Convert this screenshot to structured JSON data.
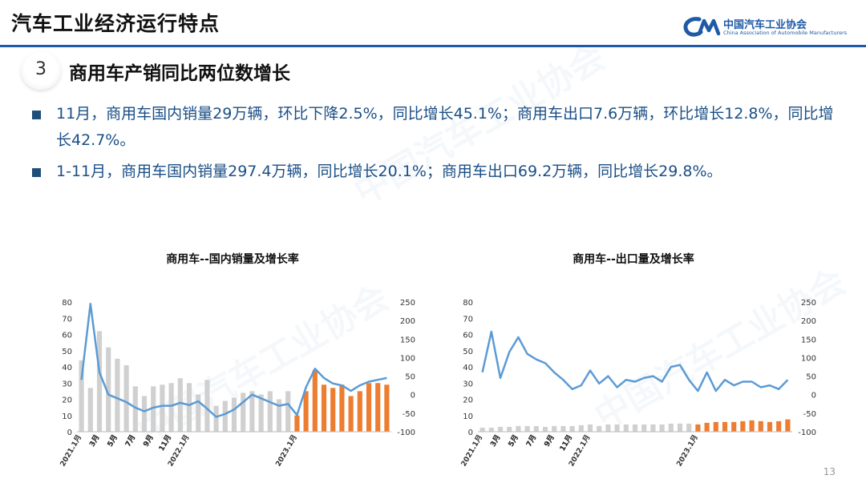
{
  "header": {
    "title": "汽车工业经济运行特点"
  },
  "logo": {
    "name_cn": "中国汽车工业协会",
    "name_en": "China Association of Automobile Manufacturers"
  },
  "section": {
    "number": "3",
    "title": "商用车产销同比两位数增长"
  },
  "bullets": [
    "11月，商用车国内销量29万辆，环比下降2.5%，同比增长45.1%；商用车出口7.6万辆，环比增长12.8%，同比增长42.7%。",
    "1-11月，商用车国内销量297.4万辆，同比增长20.1%；商用车出口69.2万辆，同比增长29.8%。"
  ],
  "page_number": "13",
  "colors": {
    "bar_prior": "#d0d0d0",
    "bar_2023": "#ed7d31",
    "line": "#5b9bd5",
    "brand": "#1f5aa6"
  },
  "chart_data": [
    {
      "type": "bar",
      "title": "商用车--国内销量及增长率",
      "categories": [
        "2021.1月",
        "2",
        "3月",
        "4",
        "5月",
        "6",
        "7月",
        "8",
        "9月",
        "10",
        "11月",
        "12",
        "2022.1月",
        "2",
        "3月",
        "4",
        "5月",
        "6",
        "7月",
        "8",
        "9月",
        "10",
        "11月",
        "12",
        "2023.1月",
        "2",
        "3月",
        "4",
        "5月",
        "6",
        "7月",
        "8",
        "9月",
        "10",
        "11月"
      ],
      "x_tick_labels": [
        "2021.1月",
        "3月",
        "5月",
        "7月",
        "9月",
        "11月",
        "2022.1月",
        "3月",
        "5月",
        "7月",
        "9月",
        "11月",
        "2023.1月",
        "3月",
        "5月",
        "7月",
        "9月",
        "11月"
      ],
      "series": [
        {
          "axis": "left",
          "render": "bar",
          "values": [
            44,
            27,
            62,
            52,
            45,
            41,
            28,
            22,
            28,
            29,
            30,
            33,
            30,
            23,
            32,
            16,
            19,
            21,
            24,
            25,
            23,
            25,
            20,
            25,
            10,
            25,
            38,
            29,
            27,
            29,
            22,
            25,
            30,
            30,
            29
          ]
        },
        {
          "axis": "right",
          "render": "line",
          "values": [
            40,
            245,
            60,
            0,
            -10,
            -20,
            -35,
            -45,
            -35,
            -30,
            -30,
            -22,
            -28,
            -18,
            -38,
            -60,
            -52,
            -40,
            -20,
            0,
            -10,
            -20,
            -30,
            -25,
            -55,
            20,
            70,
            45,
            30,
            25,
            10,
            25,
            35,
            40,
            45
          ]
        }
      ],
      "ylim_left": [
        0,
        80
      ],
      "yticks_left": [
        0,
        10,
        20,
        30,
        40,
        50,
        60,
        70,
        80
      ],
      "ylim_right": [
        -100,
        250
      ],
      "yticks_right": [
        -100,
        -50,
        0,
        50,
        100,
        150,
        200,
        250
      ]
    },
    {
      "type": "bar",
      "title": "商用车--出口量及增长率",
      "categories": [
        "2021.1月",
        "2",
        "3月",
        "4",
        "5月",
        "6",
        "7月",
        "8",
        "9月",
        "10",
        "11月",
        "12",
        "2022.1月",
        "2",
        "3月",
        "4",
        "5月",
        "6",
        "7月",
        "8",
        "9月",
        "10",
        "11月",
        "12",
        "2023.1月",
        "2",
        "3月",
        "4",
        "5月",
        "6",
        "7月",
        "8",
        "9月",
        "10",
        "11月"
      ],
      "x_tick_labels": [
        "2021.1月",
        "3月",
        "5月",
        "7月",
        "9月",
        "11月",
        "2022.1月",
        "3月",
        "5月",
        "7月",
        "9月",
        "11月",
        "2023.1月",
        "3月",
        "5月",
        "7月",
        "9月",
        "11月"
      ],
      "series": [
        {
          "axis": "left",
          "render": "bar",
          "values": [
            2.5,
            2.5,
            3,
            3,
            3.5,
            3.5,
            3.5,
            3,
            3.5,
            3.5,
            3.5,
            4,
            4.5,
            3.5,
            4.5,
            4.5,
            4.5,
            4.5,
            4.5,
            4.5,
            4.5,
            5,
            5,
            5,
            4.5,
            5.5,
            6,
            6,
            6,
            6.5,
            7,
            6.5,
            6,
            6.5,
            7.6
          ]
        },
        {
          "axis": "right",
          "render": "line",
          "values": [
            60,
            170,
            45,
            115,
            155,
            110,
            95,
            85,
            60,
            40,
            15,
            25,
            65,
            30,
            50,
            20,
            40,
            35,
            45,
            50,
            35,
            75,
            80,
            40,
            10,
            60,
            10,
            40,
            25,
            35,
            35,
            20,
            25,
            15,
            40
          ]
        }
      ],
      "ylim_left": [
        0,
        80
      ],
      "yticks_left": [
        0,
        10,
        20,
        30,
        40,
        50,
        60,
        70,
        80
      ],
      "ylim_right": [
        -100,
        250
      ],
      "yticks_right": [
        -100,
        -50,
        0,
        50,
        100,
        150,
        200,
        250
      ]
    }
  ]
}
